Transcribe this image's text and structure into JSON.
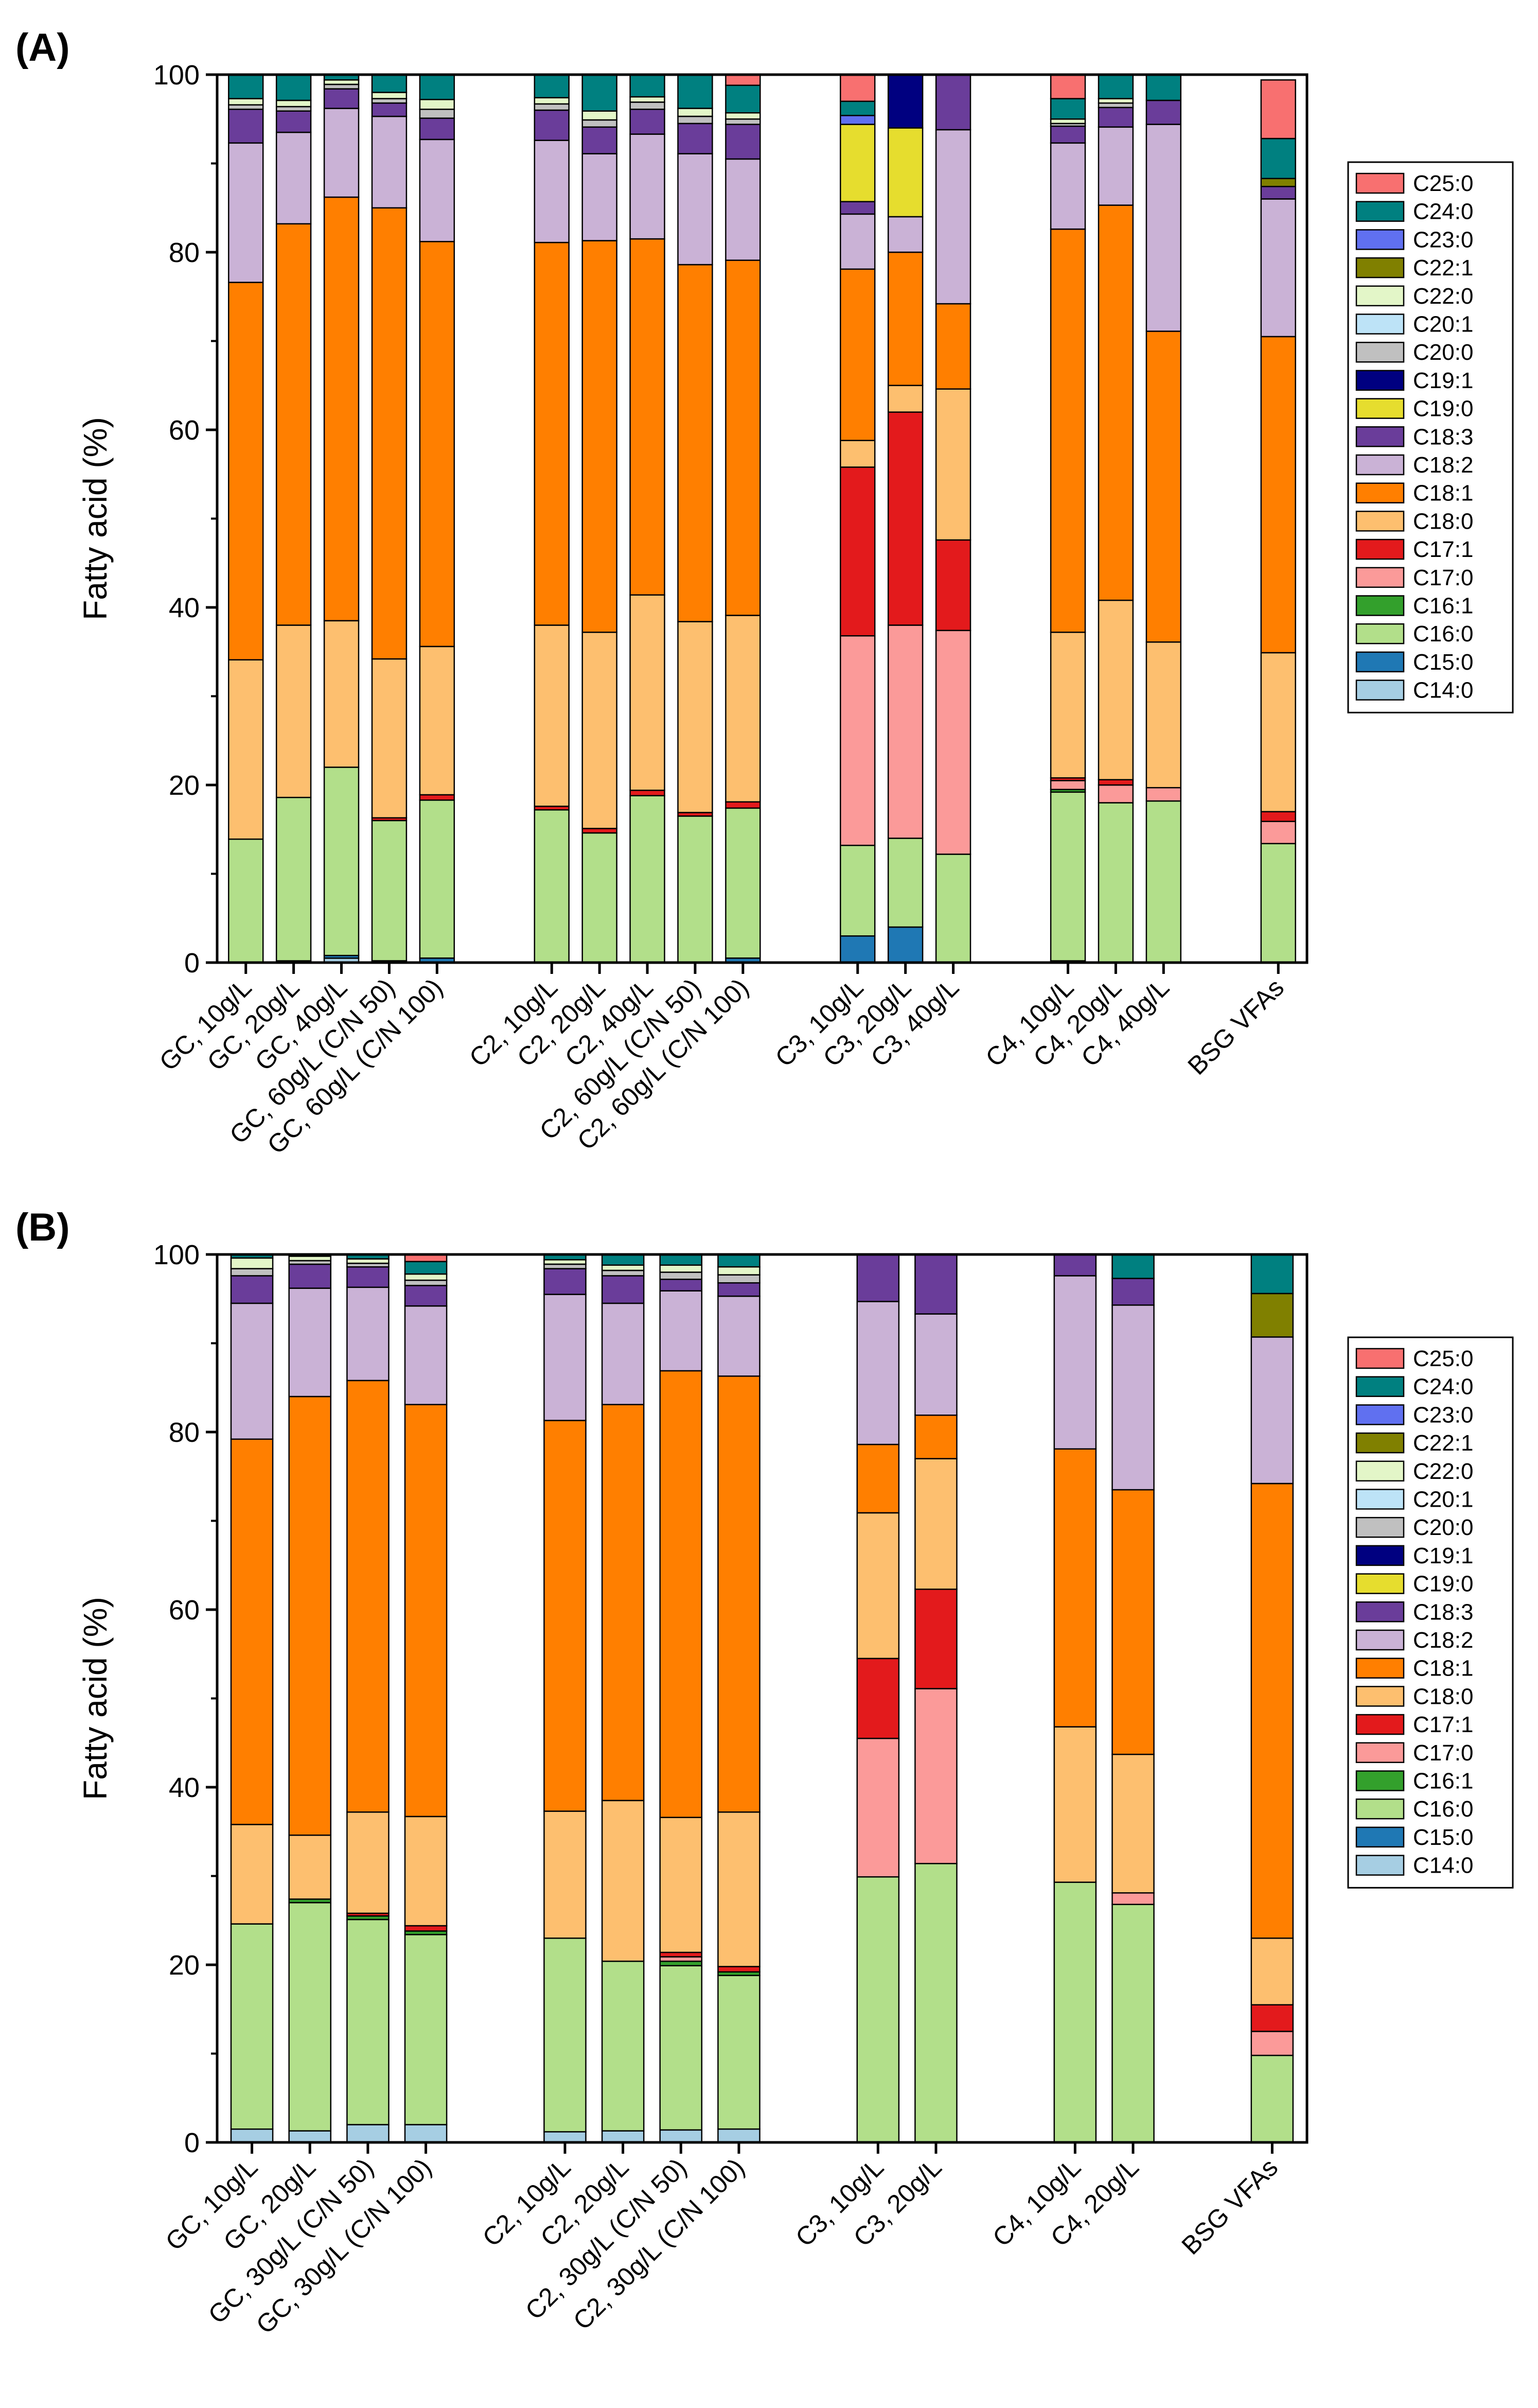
{
  "chart_data": [
    {
      "panel": "(A)",
      "type": "bar",
      "stacked": true,
      "xlabel": "",
      "ylabel": "Fatty acid (%)",
      "ylim": [
        0,
        100
      ],
      "yticks": [
        0,
        20,
        40,
        60,
        80,
        100
      ],
      "legend_position": "right",
      "series_names": [
        "C14:0",
        "C15:0",
        "C16:0",
        "C16:1",
        "C17:0",
        "C17:1",
        "C18:0",
        "C18:1",
        "C18:2",
        "C18:3",
        "C19:0",
        "C19:1",
        "C20:0",
        "C20:1",
        "C22:0",
        "C22:1",
        "C23:0",
        "C24:0",
        "C25:0"
      ],
      "categories": [
        "GC, 10g/L",
        "GC, 20g/L",
        "GC, 40g/L",
        "GC, 60g/L (C/N 50)",
        "GC, 60g/L (C/N 100)",
        "C2, 10g/L",
        "C2, 20g/L",
        "C2, 40g/L",
        "C2, 60g/L (C/N 50)",
        "C2, 60g/L (C/N 100)",
        "C3, 10g/L",
        "C3, 20g/L",
        "C3, 40g/L",
        "C4, 10g/L",
        "C4, 20g/L",
        "C4, 40g/L",
        "BSG VFAs"
      ],
      "groups": [
        [
          0,
          1,
          2,
          3,
          4
        ],
        [
          5,
          6,
          7,
          8,
          9
        ],
        [
          10,
          11,
          12
        ],
        [
          13,
          14,
          15
        ],
        [
          16
        ]
      ],
      "values": [
        [
          0,
          0,
          13.9,
          0,
          0,
          0,
          20.2,
          42.5,
          15.7,
          3.8,
          0,
          0,
          0.5,
          0,
          0.7,
          0,
          0,
          2.7,
          0
        ],
        [
          0,
          0.2,
          18.4,
          0,
          0,
          0,
          19.4,
          45.2,
          10.3,
          2.4,
          0,
          0,
          0.5,
          0,
          0.7,
          0,
          0,
          2.9,
          0
        ],
        [
          0.5,
          0.3,
          21.2,
          0,
          0,
          0,
          16.5,
          47.7,
          10.0,
          2.2,
          0,
          0,
          0.5,
          0,
          0.5,
          0,
          0,
          0.6,
          0
        ],
        [
          0,
          0.2,
          15.8,
          0,
          0,
          0.3,
          17.9,
          50.8,
          10.3,
          1.5,
          0,
          0,
          0.5,
          0,
          0.7,
          0,
          0,
          2.0,
          0
        ],
        [
          0,
          0.5,
          17.8,
          0,
          0,
          0.6,
          16.7,
          45.6,
          11.5,
          2.4,
          0,
          0,
          1.0,
          0,
          1.1,
          0,
          0,
          2.8,
          1.3
        ],
        [
          0,
          0,
          17.2,
          0,
          0,
          0.4,
          20.4,
          43.1,
          11.5,
          3.4,
          0,
          0,
          0.7,
          0,
          0.7,
          0,
          0,
          2.6,
          0
        ],
        [
          0,
          0,
          14.6,
          0,
          0,
          0.5,
          22.1,
          44.1,
          9.8,
          3.0,
          0,
          0,
          0.8,
          0,
          1.0,
          0,
          0,
          4.1,
          0
        ],
        [
          0,
          0,
          18.8,
          0,
          0,
          0.6,
          22.0,
          40.1,
          11.8,
          2.8,
          0,
          0,
          0.8,
          0,
          0.6,
          0,
          0,
          2.5,
          0
        ],
        [
          0,
          0,
          16.5,
          0,
          0,
          0.4,
          21.5,
          40.2,
          12.5,
          3.4,
          0,
          0,
          0.8,
          0,
          0.9,
          0,
          0,
          3.8,
          0
        ],
        [
          0,
          0.5,
          16.9,
          0,
          0,
          0.7,
          21.0,
          40.0,
          11.4,
          3.9,
          0,
          0,
          0.6,
          0,
          0.7,
          0,
          0,
          3.1,
          1.2
        ],
        [
          0,
          3.0,
          10.2,
          0,
          23.6,
          19.0,
          3.0,
          19.3,
          6.2,
          1.4,
          8.7,
          0,
          0,
          0,
          0,
          0,
          1.0,
          1.6,
          3.0
        ],
        [
          0,
          4.0,
          10.0,
          0,
          24.0,
          24.0,
          3.0,
          15.0,
          4.0,
          0,
          10.0,
          6.0,
          0,
          0,
          0,
          0,
          0,
          0,
          0
        ],
        [
          0,
          0,
          12.2,
          0,
          25.2,
          10.2,
          17.0,
          9.6,
          19.6,
          6.2,
          0,
          0,
          0,
          0,
          0,
          0,
          0,
          0,
          0
        ],
        [
          0,
          0.2,
          19.0,
          0.3,
          1.0,
          0.3,
          16.4,
          45.4,
          9.7,
          1.9,
          0,
          0,
          0.3,
          0,
          0.5,
          0,
          0,
          2.3,
          2.7
        ],
        [
          0,
          0,
          18.0,
          0,
          2.0,
          0.6,
          20.2,
          44.5,
          8.8,
          2.2,
          0,
          0,
          0.5,
          0,
          0.5,
          0,
          0,
          2.7,
          0
        ],
        [
          0,
          0,
          18.2,
          0,
          1.5,
          0,
          16.4,
          35.0,
          23.3,
          2.7,
          0,
          0,
          0,
          0,
          0,
          0,
          0,
          2.9,
          0
        ],
        [
          0,
          0,
          13.4,
          0,
          2.5,
          1.1,
          17.9,
          35.6,
          15.5,
          1.4,
          0,
          0,
          0,
          0,
          0,
          0.9,
          0,
          4.5,
          6.6
        ]
      ]
    },
    {
      "panel": "(B)",
      "type": "bar",
      "stacked": true,
      "xlabel": "",
      "ylabel": "Fatty acid (%)",
      "ylim": [
        0,
        100
      ],
      "yticks": [
        0,
        20,
        40,
        60,
        80,
        100
      ],
      "legend_position": "right",
      "series_names": [
        "C14:0",
        "C15:0",
        "C16:0",
        "C16:1",
        "C17:0",
        "C17:1",
        "C18:0",
        "C18:1",
        "C18:2",
        "C18:3",
        "C19:0",
        "C19:1",
        "C20:0",
        "C20:1",
        "C22:0",
        "C22:1",
        "C23:0",
        "C24:0",
        "C25:0"
      ],
      "categories": [
        "GC, 10g/L",
        "GC, 20g/L",
        "GC, 30g/L (C/N 50)",
        "GC, 30g/L (C/N 100)",
        "C2, 10g/L",
        "C2, 20g/L",
        "C2, 30g/L (C/N 50)",
        "C2, 30g/L (C/N 100)",
        "C3, 10g/L",
        "C3, 20g/L",
        "C4, 10g/L",
        "C4, 20g/L",
        "BSG VFAs"
      ],
      "groups": [
        [
          0,
          1,
          2,
          3
        ],
        [
          4,
          5,
          6,
          7
        ],
        [
          8,
          9
        ],
        [
          10,
          11
        ],
        [
          12
        ]
      ],
      "values": [
        [
          1.5,
          0,
          23.1,
          0,
          0,
          0,
          11.2,
          43.4,
          15.3,
          3.1,
          0,
          0,
          0.8,
          0,
          1.2,
          0,
          0,
          0.8,
          0
        ],
        [
          1.3,
          0,
          25.7,
          0.4,
          0,
          0,
          7.2,
          49.4,
          12.2,
          2.7,
          0,
          0,
          0.4,
          0,
          0.5,
          0,
          0,
          0.2,
          0
        ],
        [
          2.0,
          0,
          23.1,
          0.4,
          0,
          0.3,
          11.4,
          48.6,
          10.5,
          2.3,
          0,
          0,
          0.4,
          0,
          0.5,
          0,
          0,
          0.5,
          0
        ],
        [
          2.0,
          0,
          21.4,
          0.4,
          0,
          0.6,
          12.3,
          46.4,
          11.1,
          2.3,
          0,
          0,
          0.6,
          0,
          0.7,
          0,
          0,
          1.4,
          0.8
        ],
        [
          1.2,
          0,
          21.8,
          0,
          0,
          0,
          14.3,
          44.0,
          14.2,
          2.9,
          0,
          0,
          0.5,
          0,
          0.5,
          0,
          0,
          0.6,
          0
        ],
        [
          1.3,
          0,
          19.1,
          0,
          0,
          0,
          18.1,
          44.6,
          11.4,
          3.1,
          0,
          0,
          0.6,
          0,
          0.6,
          0,
          0,
          1.2,
          0
        ],
        [
          1.4,
          0,
          18.5,
          0.5,
          0.5,
          0.5,
          15.2,
          50.3,
          9.0,
          1.3,
          0,
          0,
          0.8,
          0,
          0.8,
          0,
          0,
          1.2,
          0
        ],
        [
          1.5,
          0,
          17.3,
          0.4,
          0,
          0.6,
          17.4,
          49.1,
          9.0,
          1.5,
          0,
          0,
          0.9,
          0,
          0.9,
          0,
          0,
          1.4,
          0
        ],
        [
          0,
          0,
          29.9,
          0,
          15.6,
          9.0,
          16.4,
          7.7,
          16.1,
          5.3,
          0,
          0,
          0,
          0,
          0,
          0,
          0,
          0,
          0
        ],
        [
          0,
          0,
          31.4,
          0,
          19.7,
          11.2,
          14.7,
          4.9,
          11.4,
          6.7,
          0,
          0,
          0,
          0,
          0,
          0,
          0,
          0,
          0
        ],
        [
          0,
          0,
          29.3,
          0,
          0,
          0,
          17.5,
          31.3,
          19.5,
          2.4,
          0,
          0,
          0,
          0,
          0,
          0,
          0,
          0,
          0
        ],
        [
          0,
          0,
          26.8,
          0,
          1.3,
          0,
          15.6,
          29.8,
          20.8,
          3.0,
          0,
          0,
          0,
          0,
          0,
          0,
          0,
          2.7,
          0
        ],
        [
          0,
          0,
          9.8,
          0,
          2.7,
          3.0,
          7.5,
          51.2,
          16.5,
          0,
          0,
          0,
          0,
          0,
          0,
          4.9,
          0,
          4.4,
          0
        ]
      ]
    }
  ],
  "legend": {
    "entries": [
      "C25:0",
      "C24:0",
      "C23:0",
      "C22:1",
      "C22:0",
      "C20:1",
      "C20:0",
      "C19:1",
      "C19:0",
      "C18:3",
      "C18:2",
      "C18:1",
      "C18:0",
      "C17:1",
      "C17:0",
      "C16:1",
      "C16:0",
      "C15:0",
      "C14:0"
    ]
  },
  "colors": {
    "C14:0": "#a6cee3",
    "C15:0": "#1f78b4",
    "C16:0": "#b2df8a",
    "C16:1": "#33a02c",
    "C17:0": "#fb9a99",
    "C17:1": "#e31a1c",
    "C18:0": "#fdbf6f",
    "C18:1": "#ff7f00",
    "C18:2": "#cab2d6",
    "C18:3": "#6a3d9a",
    "C19:0": "#e6dd2e",
    "C19:1": "#000080",
    "C20:0": "#c0c0c0",
    "C20:1": "#bde3f7",
    "C22:0": "#e3f6c8",
    "C22:1": "#808000",
    "C23:0": "#6070f0",
    "C24:0": "#008080",
    "C25:0": "#f87070"
  }
}
